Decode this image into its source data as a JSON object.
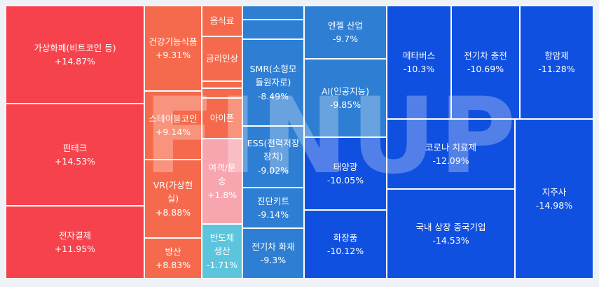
{
  "watermark": "FINUP",
  "colors": {
    "red_strong": "#f5424c",
    "orange": "#f56a4c",
    "pink_light": "#f7a5ae",
    "cyan": "#5cc5dd",
    "blue_mid": "#2e7fd3",
    "blue_strong": "#1050e0",
    "border": "#ffffff"
  },
  "tiles": [
    {
      "name": "가상화폐(비트코인 등)",
      "pct": "+14.87%"
    },
    {
      "name": "핀테크",
      "pct": "+14.53%"
    },
    {
      "name": "전자결제",
      "pct": "+11.95%"
    },
    {
      "name": "건강기능식품",
      "pct": "+9.31%"
    },
    {
      "name": "스테이블코인",
      "pct": "+9.14%"
    },
    {
      "name": "VR(가상현실)",
      "pct": "+8.88%"
    },
    {
      "name": "방산",
      "pct": "+8.83%"
    },
    {
      "name": "음식료",
      "pct": ""
    },
    {
      "name": "금리인상",
      "pct": ""
    },
    {
      "name": "아이폰",
      "pct": ""
    },
    {
      "name": "여객/운송",
      "pct": "+1.8%"
    },
    {
      "name": "반도체 생산",
      "pct": "-1.71%"
    },
    {
      "name": "SMR(소형모듈원자로)",
      "pct": "-8.49%"
    },
    {
      "name": "ESS(전력저장장치)",
      "pct": "-9.02%"
    },
    {
      "name": "진단키트",
      "pct": "-9.14%"
    },
    {
      "name": "전기차 화재",
      "pct": "-9.3%"
    },
    {
      "name": "엔젤 산업",
      "pct": "-9.7%"
    },
    {
      "name": "AI(인공지능)",
      "pct": "-9.85%"
    },
    {
      "name": "태양광",
      "pct": "-10.05%"
    },
    {
      "name": "화장품",
      "pct": "-10.12%"
    },
    {
      "name": "메타버스",
      "pct": "-10.3%"
    },
    {
      "name": "전기차 충전",
      "pct": "-10.69%"
    },
    {
      "name": "항암제",
      "pct": "-11.28%"
    },
    {
      "name": "코로나 치료제",
      "pct": "-12.09%"
    },
    {
      "name": "국내 상장 중국기업",
      "pct": "-14.53%"
    },
    {
      "name": "지주사",
      "pct": "-14.98%"
    },
    {
      "name": "",
      "pct": ""
    },
    {
      "name": "",
      "pct": ""
    },
    {
      "name": "",
      "pct": ""
    },
    {
      "name": "",
      "pct": ""
    },
    {
      "name": "",
      "pct": ""
    }
  ]
}
